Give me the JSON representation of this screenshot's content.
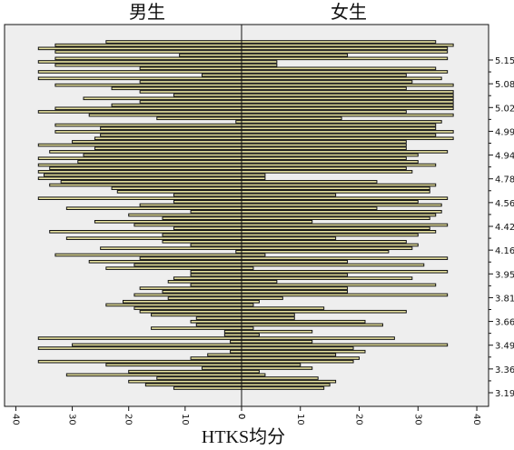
{
  "chart_data": {
    "type": "bar",
    "orientation": "horizontal-population-pyramid",
    "panel_titles": [
      "男生",
      "女生"
    ],
    "xlabel": "HTKS均分",
    "ylabel": "",
    "x_ticks_left": [
      "40",
      "30",
      "20",
      "10",
      "0"
    ],
    "x_ticks_right": [
      "0",
      "10",
      "20",
      "30",
      "40"
    ],
    "xlim": [
      0,
      42
    ],
    "y_ticks": [
      "5.15",
      "5.08",
      "5.02",
      "4.99",
      "4.94",
      "4.78",
      "4.56",
      "4.42",
      "4.16",
      "3.95",
      "3.81",
      "3.66",
      "3.49",
      "3.36",
      "3.19"
    ],
    "colors": {
      "bar_fill": "#e8e3a0",
      "bar_edge": "#111111",
      "panel_bg": "#eeeeee"
    },
    "series": [
      {
        "name": "男生",
        "values": [
          24,
          33,
          36,
          33,
          11,
          33,
          36,
          33,
          18,
          36,
          7,
          36,
          18,
          33,
          23,
          18,
          12,
          28,
          18,
          23,
          33,
          36,
          27,
          15,
          1,
          33,
          25,
          33,
          25,
          26,
          30,
          36,
          26,
          34,
          28,
          36,
          29,
          36,
          34,
          36,
          35,
          36,
          32,
          34,
          23,
          22,
          12,
          36,
          12,
          18,
          31,
          9,
          20,
          14,
          26,
          19,
          12,
          34,
          14,
          31,
          14,
          9,
          25,
          1,
          33,
          18,
          27,
          19,
          24,
          9,
          9,
          12,
          13,
          9,
          18,
          14,
          19,
          13,
          21,
          24,
          19,
          18,
          16,
          8,
          9,
          8,
          16,
          3,
          3,
          36,
          2,
          30,
          36,
          2,
          6,
          9,
          36,
          24,
          7,
          20,
          31,
          15,
          20,
          17,
          12
        ]
      },
      {
        "name": "女生",
        "values": [
          33,
          36,
          35,
          35,
          18,
          35,
          6,
          6,
          33,
          35,
          28,
          34,
          29,
          36,
          28,
          36,
          36,
          36,
          36,
          36,
          36,
          28,
          36,
          17,
          34,
          33,
          33,
          36,
          33,
          36,
          28,
          28,
          28,
          35,
          30,
          28,
          30,
          33,
          28,
          29,
          4,
          4,
          23,
          33,
          32,
          32,
          16,
          35,
          30,
          34,
          23,
          34,
          33,
          32,
          12,
          35,
          32,
          33,
          30,
          16,
          28,
          30,
          29,
          25,
          4,
          35,
          18,
          31,
          2,
          35,
          18,
          29,
          6,
          33,
          18,
          18,
          35,
          7,
          3,
          2,
          14,
          28,
          9,
          9,
          21,
          24,
          2,
          12,
          3,
          26,
          12,
          35,
          19,
          21,
          16,
          20,
          19,
          10,
          12,
          3,
          4,
          13,
          16,
          15,
          14
        ]
      }
    ]
  }
}
